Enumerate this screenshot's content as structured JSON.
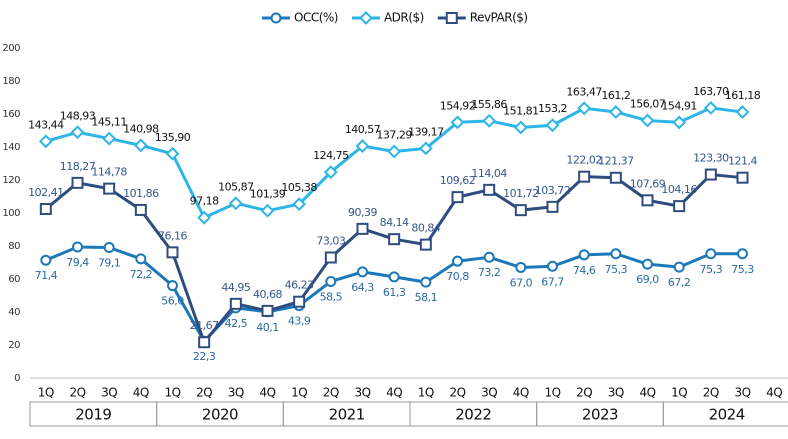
{
  "chart_data": {
    "type": "line",
    "categories": [
      "1Q",
      "2Q",
      "3Q",
      "4Q",
      "1Q",
      "2Q",
      "3Q",
      "4Q",
      "1Q",
      "2Q",
      "3Q",
      "4Q",
      "1Q",
      "2Q",
      "3Q",
      "4Q",
      "1Q",
      "2Q",
      "3Q",
      "4Q",
      "1Q",
      "2Q",
      "3Q",
      "4Q"
    ],
    "year_groups": [
      "2019",
      "2020",
      "2021",
      "2022",
      "2023",
      "2024"
    ],
    "ylim": [
      0,
      200
    ],
    "yticks": [
      0,
      20,
      40,
      60,
      80,
      100,
      120,
      140,
      160,
      180,
      200
    ],
    "grid": false,
    "legend": "top",
    "series": [
      {
        "name": "OCC(%)",
        "color": "#1c78b8",
        "label_color": "#2a6aa3",
        "marker": "circle",
        "label_pos": "below",
        "values": [
          71.4,
          79.4,
          79.1,
          72.2,
          56.0,
          22.3,
          42.5,
          40.1,
          43.9,
          58.5,
          64.3,
          61.3,
          58.1,
          70.8,
          73.2,
          67.0,
          67.7,
          74.6,
          75.3,
          69.0,
          67.2,
          75.3,
          75.3,
          null
        ],
        "value_labels": [
          "71,4",
          "79,4",
          "79,1",
          "72,2",
          "56,0",
          "22,3",
          "42,5",
          "40,1",
          "43,9",
          "58,5",
          "64,3",
          "61,3",
          "58,1",
          "70,8",
          "73,2",
          "67,0",
          "67,7",
          "74,6",
          "75,3",
          "69,0",
          "67,2",
          "75,3",
          "75,3",
          null
        ]
      },
      {
        "name": "ADR($)",
        "color": "#2cb5e6",
        "label_color": "#111111",
        "marker": "diamond",
        "label_pos": "above",
        "values": [
          143.44,
          148.93,
          145.11,
          140.98,
          135.9,
          97.18,
          105.87,
          101.39,
          105.38,
          124.75,
          140.57,
          137.29,
          139.17,
          154.92,
          155.86,
          151.81,
          153.2,
          163.47,
          161.2,
          156.07,
          154.91,
          163.7,
          161.18,
          null
        ],
        "value_labels": [
          "143,44",
          "148,93",
          "145,11",
          "140,98",
          "135,90",
          "97,18",
          "105,87",
          "101,39",
          "105,38",
          "124,75",
          "140,57",
          "137,29",
          "139,17",
          "154,92",
          "155,86",
          "151,81",
          "153,2",
          "163,47",
          "161,2",
          "156,07",
          "154,91",
          "163,70",
          "161,18",
          null
        ]
      },
      {
        "name": "RevPAR($)",
        "color": "#2f4c7e",
        "label_color": "#34568e",
        "marker": "square",
        "label_pos": "above",
        "values": [
          102.41,
          118.27,
          114.78,
          101.86,
          76.16,
          21.67,
          44.95,
          40.68,
          46.23,
          73.03,
          90.39,
          84.14,
          80.84,
          109.62,
          114.04,
          101.72,
          103.72,
          122.02,
          121.37,
          107.69,
          104.16,
          123.3,
          121.4,
          null
        ],
        "value_labels": [
          "102,41",
          "118,27",
          "114,78",
          "101,86",
          "76,16",
          "21,67",
          "44,95",
          "40,68",
          "46,23",
          "73,03",
          "90,39",
          "84,14",
          "80,84",
          "109,62",
          "114,04",
          "101,72",
          "103,72",
          "122,02",
          "121,37",
          "107,69",
          "104,16",
          "123,30",
          "121,4",
          null
        ]
      }
    ]
  }
}
